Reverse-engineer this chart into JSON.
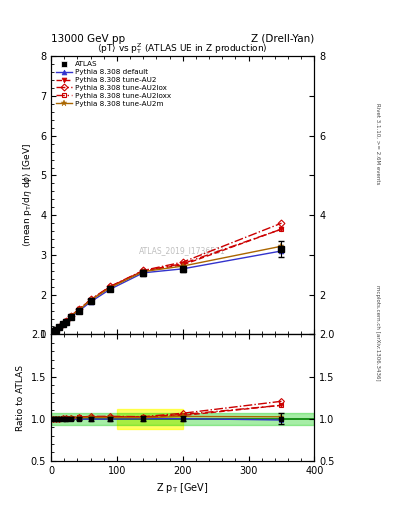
{
  "title_left": "13000 GeV pp",
  "title_right": "Z (Drell-Yan)",
  "plot_title": "<pT> vs p_{T}^{Z} (ATLAS UE in Z production)",
  "xlabel": "Z p_{T} [GeV]",
  "ylabel_main": "<mean p_{T}/d#eta d#phi> [GeV]",
  "ylabel_ratio": "Ratio to ATLAS",
  "watermark": "ATLAS_2019_I1736531",
  "right_label_top": "Rivet 3.1.10, >= 2.6M events",
  "right_label_bot": "mcplots.cern.ch [arXiv:1306.3436]",
  "x_data": [
    2.5,
    7.5,
    12.5,
    17.5,
    22.5,
    30,
    42.5,
    60,
    90,
    140,
    200,
    350
  ],
  "atlas_y": [
    1.08,
    1.12,
    1.18,
    1.25,
    1.32,
    1.45,
    1.6,
    1.83,
    2.15,
    2.55,
    2.65,
    3.15
  ],
  "atlas_yerr": [
    0.02,
    0.02,
    0.02,
    0.02,
    0.03,
    0.03,
    0.03,
    0.04,
    0.05,
    0.07,
    0.08,
    0.2
  ],
  "default_y": [
    1.08,
    1.12,
    1.18,
    1.25,
    1.32,
    1.44,
    1.59,
    1.82,
    2.14,
    2.55,
    2.65,
    3.1
  ],
  "au2_y": [
    1.08,
    1.12,
    1.18,
    1.26,
    1.33,
    1.47,
    1.63,
    1.87,
    2.2,
    2.6,
    2.75,
    3.65
  ],
  "au2lox_y": [
    1.08,
    1.12,
    1.18,
    1.26,
    1.33,
    1.47,
    1.63,
    1.88,
    2.21,
    2.61,
    2.82,
    3.8
  ],
  "au2loxx_y": [
    1.08,
    1.12,
    1.18,
    1.26,
    1.33,
    1.47,
    1.63,
    1.87,
    2.2,
    2.6,
    2.78,
    3.65
  ],
  "au2m_y": [
    1.08,
    1.12,
    1.18,
    1.25,
    1.32,
    1.46,
    1.62,
    1.86,
    2.18,
    2.58,
    2.72,
    3.22
  ],
  "ylim_main": [
    1.0,
    8.0
  ],
  "ylim_ratio": [
    0.5,
    2.0
  ],
  "xlim": [
    0,
    400
  ],
  "yticks_main": [
    1,
    2,
    3,
    4,
    5,
    6,
    7,
    8
  ],
  "yticks_ratio": [
    0.5,
    1.0,
    1.5,
    2.0
  ],
  "xticks": [
    0,
    100,
    200,
    300,
    400
  ],
  "color_atlas": "#000000",
  "color_default": "#3333cc",
  "color_au2": "#cc0000",
  "color_au2lox": "#cc0000",
  "color_au2loxx": "#cc0000",
  "color_au2m": "#aa6600",
  "band_yellow": "#ffff00",
  "band_green": "#00cc00",
  "band_alpha_yellow": 0.6,
  "band_alpha_green": 0.35
}
